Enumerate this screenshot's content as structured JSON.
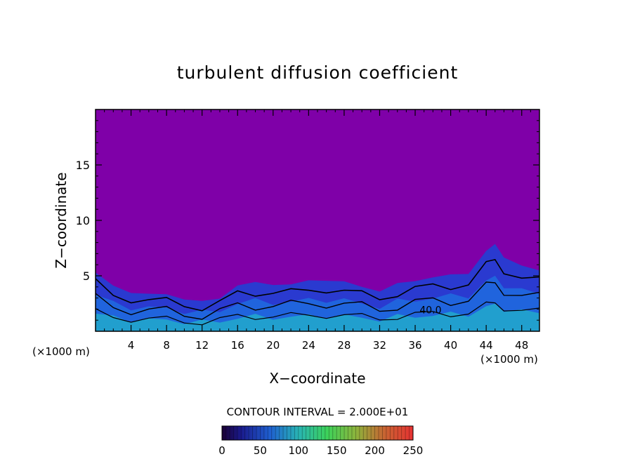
{
  "chart_data": {
    "type": "heatmap",
    "title": "turbulent diffusion coefficient",
    "xlabel": "X−coordinate",
    "ylabel": "Z−coordinate",
    "x_unit_left": "(×1000 m)",
    "x_unit_right": "(×1000 m)",
    "xlim": [
      0,
      50
    ],
    "ylim": [
      0,
      20
    ],
    "x_ticks": [
      4,
      8,
      12,
      16,
      20,
      24,
      28,
      32,
      36,
      40,
      44,
      48
    ],
    "y_ticks": [
      5,
      10,
      15
    ],
    "contour_interval_label": "CONTOUR INTERVAL = 2.000E+01",
    "contour_interval": 20,
    "contour_label": "40.0",
    "colorbar": {
      "ticks": [
        0,
        50,
        100,
        150,
        200,
        250
      ],
      "range": [
        0,
        250
      ]
    },
    "background_color": "#7f00a8",
    "boundary_layer_top_km": [
      [
        0,
        5.3
      ],
      [
        2,
        4.0
      ],
      [
        4,
        3.6
      ],
      [
        6,
        3.3
      ],
      [
        8,
        3.3
      ],
      [
        10,
        3.0
      ],
      [
        12,
        2.6
      ],
      [
        14,
        3.0
      ],
      [
        16,
        4.2
      ],
      [
        18,
        4.3
      ],
      [
        20,
        4.3
      ],
      [
        22,
        4.2
      ],
      [
        24,
        4.5
      ],
      [
        26,
        4.7
      ],
      [
        28,
        4.4
      ],
      [
        30,
        4.0
      ],
      [
        32,
        3.7
      ],
      [
        34,
        4.2
      ],
      [
        36,
        4.6
      ],
      [
        38,
        4.9
      ],
      [
        40,
        5.0
      ],
      [
        42,
        5.3
      ],
      [
        44,
        7.2
      ],
      [
        45,
        7.8
      ],
      [
        46,
        6.8
      ],
      [
        48,
        5.8
      ],
      [
        50,
        5.5
      ]
    ]
  }
}
